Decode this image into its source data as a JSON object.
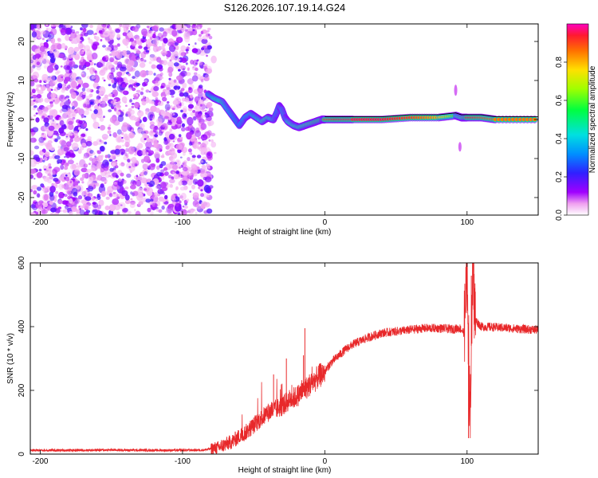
{
  "title": "S126.2026.107.19.14.G24",
  "chart_data": [
    {
      "type": "heatmap",
      "xlabel": "Height of straight line (km)",
      "ylabel": "Frequency (Hz)",
      "xlim": [
        -207,
        150
      ],
      "ylim": [
        -24.5,
        24.5
      ],
      "xticks": [
        -200,
        -100,
        0,
        100
      ],
      "xtick_labels": [
        "-200",
        "-100",
        "0",
        "100"
      ],
      "yticks": [
        -20,
        -10,
        0,
        10,
        20
      ],
      "ytick_labels": [
        "-20",
        "-10",
        "0",
        "10",
        "20"
      ],
      "noise_region_x": [
        -207,
        -80
      ],
      "ridge": {
        "x": [
          -82,
          -78,
          -72,
          -68,
          -64,
          -60,
          -56,
          -52,
          -48,
          -44,
          -40,
          -36,
          -34,
          -32,
          -30,
          -28,
          -26,
          -22,
          -18,
          -14,
          -10,
          -6,
          -2,
          0,
          10,
          20,
          40,
          60,
          80,
          92,
          96,
          100,
          110,
          120,
          150
        ],
        "freq": [
          6.5,
          5.5,
          4.5,
          2.5,
          0.5,
          -1.5,
          0.5,
          1.5,
          0.5,
          -0.5,
          0.5,
          0.0,
          1.5,
          3.5,
          2.5,
          0.5,
          -0.5,
          -1.5,
          -2.0,
          -1.5,
          -1.0,
          -0.5,
          0.0,
          0.0,
          0.0,
          0.0,
          0.0,
          0.5,
          0.5,
          1.0,
          0.5,
          0.5,
          0.5,
          0.0,
          0.0
        ],
        "amplitude": [
          0.35,
          0.5,
          0.6,
          0.4,
          0.3,
          0.25,
          0.35,
          0.4,
          0.5,
          0.6,
          0.7,
          0.55,
          0.4,
          0.45,
          0.5,
          0.55,
          0.6,
          0.65,
          0.7,
          0.75,
          0.8,
          0.85,
          0.85,
          0.9,
          0.95,
          0.95,
          0.95,
          0.9,
          0.8,
          0.6,
          0.75,
          0.95,
          0.9,
          0.85,
          0.85
        ]
      },
      "colorbar": {
        "label": "Normalized spectral amplitude",
        "range": [
          0.0,
          1.0
        ],
        "ticks": [
          0.0,
          0.2,
          0.4,
          0.6,
          0.8
        ],
        "tick_labels": [
          "0.0",
          "0.2",
          "0.4",
          "0.6",
          "0.8"
        ]
      }
    },
    {
      "type": "line",
      "xlabel": "Height of straight line (km)",
      "ylabel": "SNR (10 * v/v)",
      "xlim": [
        -207,
        150
      ],
      "ylim": [
        0,
        600
      ],
      "xticks": [
        -200,
        -100,
        0,
        100
      ],
      "xtick_labels": [
        "-200",
        "-100",
        "0",
        "100"
      ],
      "yticks": [
        0,
        200,
        400,
        600
      ],
      "ytick_labels": [
        "0",
        "200",
        "400",
        "600"
      ],
      "color": "#e8282a",
      "series": [
        {
          "name": "SNR",
          "x": [
            -207,
            -180,
            -150,
            -120,
            -100,
            -85,
            -75,
            -65,
            -60,
            -55,
            -50,
            -45,
            -40,
            -35,
            -30,
            -25,
            -20,
            -15,
            -10,
            -5,
            0,
            5,
            10,
            15,
            20,
            30,
            40,
            50,
            60,
            70,
            80,
            90,
            95,
            98,
            100,
            102,
            104,
            106,
            110,
            120,
            130,
            140,
            150
          ],
          "y": [
            12,
            12,
            13,
            12,
            12,
            13,
            20,
            40,
            55,
            70,
            90,
            110,
            130,
            140,
            150,
            170,
            180,
            200,
            220,
            240,
            260,
            290,
            310,
            330,
            345,
            365,
            380,
            385,
            390,
            395,
            395,
            392,
            395,
            380,
            600,
            120,
            560,
            420,
            400,
            398,
            395,
            392,
            390
          ],
          "spikes": [
            {
              "x": -36,
              "y": 250
            },
            {
              "x": -27,
              "y": 300
            },
            {
              "x": -15,
              "y": 310
            },
            {
              "x": -14,
              "y": 395
            },
            {
              "x": 101,
              "y": 50
            },
            {
              "x": 103,
              "y": 560
            }
          ]
        }
      ]
    }
  ]
}
